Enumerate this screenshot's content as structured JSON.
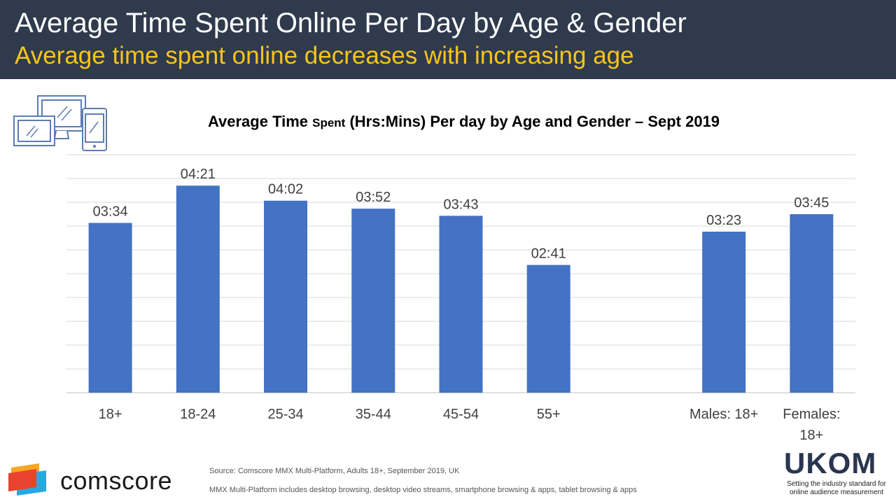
{
  "header": {
    "title": "Average Time Spent Online Per Day by Age & Gender",
    "subtitle": "Average time spent online decreases with increasing age"
  },
  "chart_data": {
    "type": "bar",
    "title_part1": "Average Time ",
    "title_part2": "Spent",
    "title_part3": " (Hrs:Mins) Per day by Age and Gender – Sept 2019",
    "categories": [
      "18+",
      "18-24",
      "25-34",
      "35-44",
      "45-54",
      "55+",
      "",
      "Males: 18+",
      "Females: 18+"
    ],
    "values": [
      214,
      261,
      242,
      232,
      223,
      161,
      null,
      203,
      225
    ],
    "value_labels": [
      "03:34",
      "04:21",
      "04:02",
      "03:52",
      "03:43",
      "02:41",
      "",
      "03:23",
      "03:45"
    ],
    "value_unit": "minutes",
    "ylim": [
      0,
      300
    ],
    "grid": true,
    "bar_color": "#4472c4"
  },
  "footer": {
    "source": "Source: Comscore MMX Multi-Platform, Adults 18+, September 2019, UK",
    "note": "MMX  Multi-Platform includes desktop browsing, desktop video streams, smartphone browsing & apps, tablet browsing & apps",
    "comscore_name": "comscore",
    "ukom_wordmark": "UKOM",
    "ukom_tagline": "Setting the industry standard for online audience measurement"
  }
}
